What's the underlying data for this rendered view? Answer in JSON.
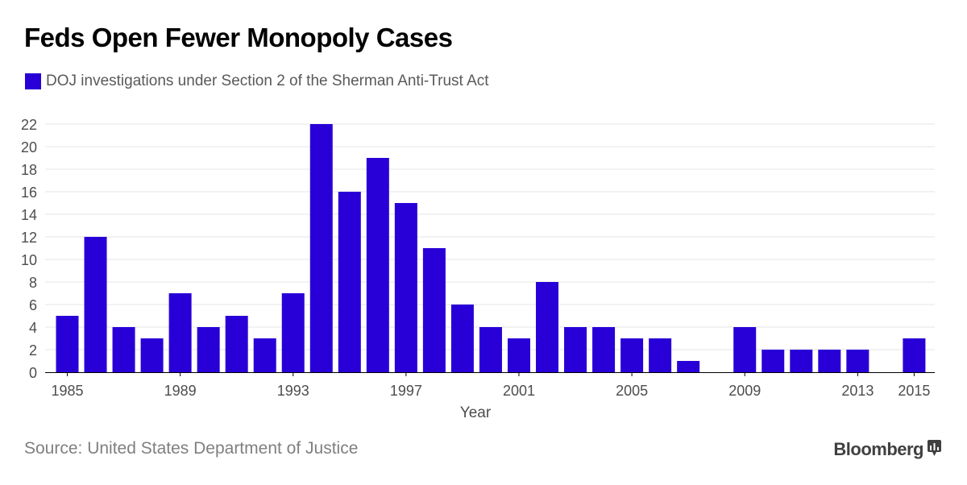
{
  "title": "Feds Open Fewer Monopoly Cases",
  "source": "Source: United States Department of Justice",
  "brand": "Bloomberg",
  "brand_icon": "bloomberg-chart-icon",
  "colors": {
    "bar": "#2800d7",
    "grid": "#e6e6e6",
    "axis": "#000000",
    "tick_text": "#4d4d4d"
  },
  "chart_data": {
    "type": "bar",
    "title": "Feds Open Fewer Monopoly Cases",
    "xlabel": "Year",
    "ylabel": "",
    "ylim": [
      0,
      22
    ],
    "yticks": [
      0,
      2,
      4,
      6,
      8,
      10,
      12,
      14,
      16,
      18,
      20,
      22
    ],
    "xtick_labels": [
      "1985",
      "1989",
      "1993",
      "1997",
      "2001",
      "2005",
      "2009",
      "2013",
      "2015"
    ],
    "grid": true,
    "legend_position": "top-left",
    "categories": [
      "1985",
      "1986",
      "1987",
      "1988",
      "1989",
      "1990",
      "1991",
      "1992",
      "1993",
      "1994",
      "1995",
      "1996",
      "1997",
      "1998",
      "1999",
      "2000",
      "2001",
      "2002",
      "2003",
      "2004",
      "2005",
      "2006",
      "2007",
      "2008",
      "2009",
      "2010",
      "2011",
      "2012",
      "2013",
      "2014",
      "2015"
    ],
    "series": [
      {
        "name": "DOJ investigations under Section 2 of the Sherman Anti-Trust Act",
        "values": [
          5,
          12,
          4,
          3,
          7,
          4,
          5,
          3,
          7,
          22,
          16,
          19,
          15,
          11,
          6,
          4,
          3,
          8,
          4,
          4,
          3,
          3,
          1,
          0,
          4,
          2,
          2,
          2,
          2,
          0,
          3
        ]
      }
    ]
  }
}
